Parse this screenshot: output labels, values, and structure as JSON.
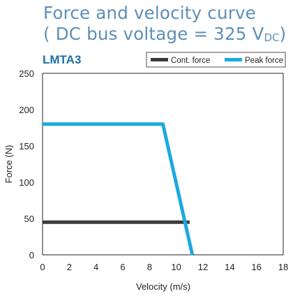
{
  "header": {
    "title_line1": "Force and velocity curve",
    "title_line2_prefix": "( DC bus voltage = 325 V",
    "title_line2_sub": "DC",
    "title_line2_suffix": ")"
  },
  "chart_data": {
    "type": "line",
    "model_label": "LMTA3",
    "xlabel": "Velocity (m/s)",
    "ylabel": "Force (N)",
    "xlim": [
      0,
      18
    ],
    "ylim": [
      0,
      250
    ],
    "xticks": [
      0,
      2,
      4,
      6,
      8,
      10,
      12,
      14,
      16,
      18
    ],
    "yticks": [
      0,
      50,
      100,
      150,
      200,
      250
    ],
    "grid": false,
    "legend_position": "top-right",
    "series": [
      {
        "name": "Cont. force",
        "color": "#3b3b3b",
        "x": [
          0,
          11.0
        ],
        "y": [
          45,
          45
        ]
      },
      {
        "name": "Peak force",
        "color": "#1ba9df",
        "x": [
          0,
          9.0,
          11.2
        ],
        "y": [
          180,
          180,
          0
        ]
      }
    ]
  },
  "colors": {
    "accent": "#5c8fb8",
    "model_label": "#1f6fa8",
    "axis": "#222222"
  }
}
